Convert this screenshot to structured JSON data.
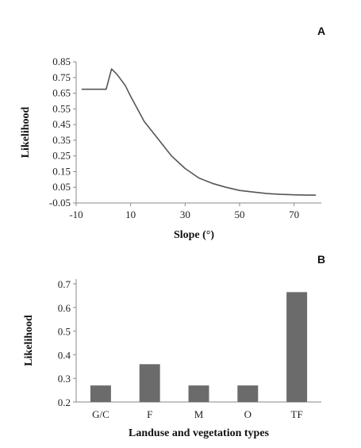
{
  "chart_data": [
    {
      "panel_label": "A",
      "type": "line",
      "xlabel": "Slope (°)",
      "ylabel": "Likelihood",
      "xlim": [
        -10,
        80
      ],
      "ylim": [
        -0.05,
        0.85
      ],
      "xticks": [
        -10,
        10,
        30,
        50,
        70
      ],
      "xtick_labels": [
        "-10",
        "10",
        "30",
        "50",
        "70"
      ],
      "yticks": [
        -0.05,
        0.05,
        0.15,
        0.25,
        0.35,
        0.45,
        0.55,
        0.65,
        0.75,
        0.85
      ],
      "ytick_labels": [
        "-0.05",
        "0.05",
        "0.15",
        "0.25",
        "0.35",
        "0.45",
        "0.55",
        "0.65",
        "0.75",
        "0.85"
      ],
      "grid": false,
      "series": [
        {
          "color": "#555555",
          "x": [
            -8,
            -5,
            0,
            1,
            2,
            3,
            5,
            8,
            10,
            15,
            20,
            25,
            30,
            35,
            40,
            45,
            50,
            55,
            60,
            65,
            70,
            75,
            78
          ],
          "y": [
            0.675,
            0.675,
            0.675,
            0.675,
            0.74,
            0.805,
            0.77,
            0.7,
            0.63,
            0.47,
            0.36,
            0.25,
            0.17,
            0.11,
            0.075,
            0.05,
            0.03,
            0.02,
            0.01,
            0.005,
            0.002,
            0.0,
            0.0
          ]
        }
      ]
    },
    {
      "panel_label": "B",
      "type": "bar",
      "xlabel": "Landuse and vegetation types",
      "ylabel": "Likelihood",
      "categories": [
        "G/C",
        "F",
        "M",
        "O",
        "TF"
      ],
      "values": [
        0.27,
        0.36,
        0.27,
        0.27,
        0.665
      ],
      "ylim": [
        0.2,
        0.72
      ],
      "yticks": [
        0.2,
        0.3,
        0.4,
        0.5,
        0.6,
        0.7
      ],
      "ytick_labels": [
        "0.2",
        "0.3",
        "0.4",
        "0.5",
        "0.6",
        "0.7"
      ],
      "grid": false,
      "bar_color": "#6b6b6b"
    }
  ],
  "colors": {
    "axis": "#8a8a8a",
    "text": "#222222"
  }
}
